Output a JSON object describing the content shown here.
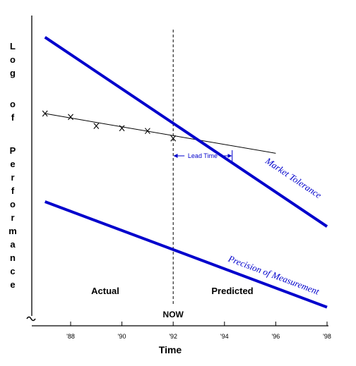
{
  "chart_data": {
    "type": "line",
    "xlabel": "Time",
    "ylabel": "Log of Performance",
    "xlim": [
      1986.5,
      1998
    ],
    "ylim": [
      0,
      100
    ],
    "x_ticks": [
      "'88",
      "'90",
      "'92",
      "'94",
      "'96",
      "'98"
    ],
    "x_tick_values": [
      1988,
      1990,
      1992,
      1994,
      1996,
      1998
    ],
    "series": [
      {
        "name": "Market Tolerance",
        "color": "#0000cc",
        "points": [
          [
            1987,
            93
          ],
          [
            1998,
            32
          ]
        ]
      },
      {
        "name": "Precision of Measurement",
        "color": "#0000cc",
        "points": [
          [
            1987,
            40
          ],
          [
            1998,
            6
          ]
        ]
      },
      {
        "name": "",
        "color": "#000000",
        "markers": "x",
        "points": [
          [
            1987,
            68.4
          ],
          [
            1988,
            67.3
          ],
          [
            1989,
            64.4
          ],
          [
            1990,
            63.7
          ],
          [
            1991,
            62.8
          ],
          [
            1992,
            60.4
          ]
        ],
        "trend": [
          [
            1987,
            68.4
          ],
          [
            1996,
            55.6
          ]
        ]
      }
    ],
    "annotations": {
      "now_label": "NOW",
      "now_x": 1992,
      "lead_time_label": "Lead Time",
      "lead_time_range": [
        1992,
        1994.3
      ],
      "actual_label": "Actual",
      "predicted_label": "Predicted"
    }
  }
}
